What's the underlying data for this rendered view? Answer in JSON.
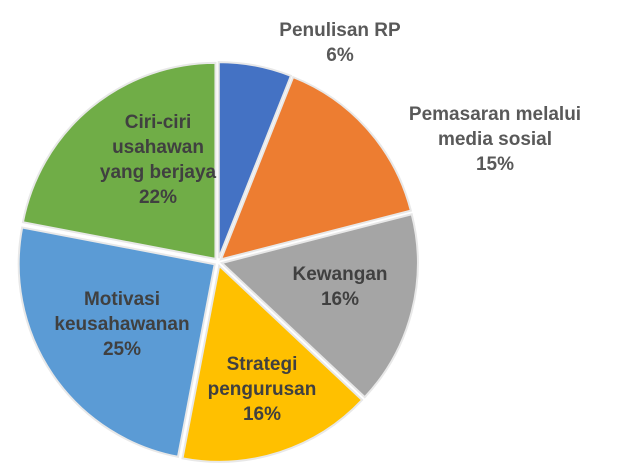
{
  "chart_data": {
    "type": "pie",
    "categories": [
      "Penulisan RP",
      "Pemasaran melalui media sosial",
      "Kewangan",
      "Strategi pengurusan",
      "Motivasi keusahawanan",
      "Ciri-ciri usahawan yang berjaya"
    ],
    "values": [
      6,
      15,
      16,
      16,
      25,
      22
    ],
    "value_labels": [
      "6%",
      "15%",
      "16%",
      "16%",
      "25%",
      "22%"
    ],
    "colors": [
      "#4472c4",
      "#ed7d31",
      "#a5a5a5",
      "#ffc000",
      "#5b9bd5",
      "#70ad47"
    ]
  }
}
